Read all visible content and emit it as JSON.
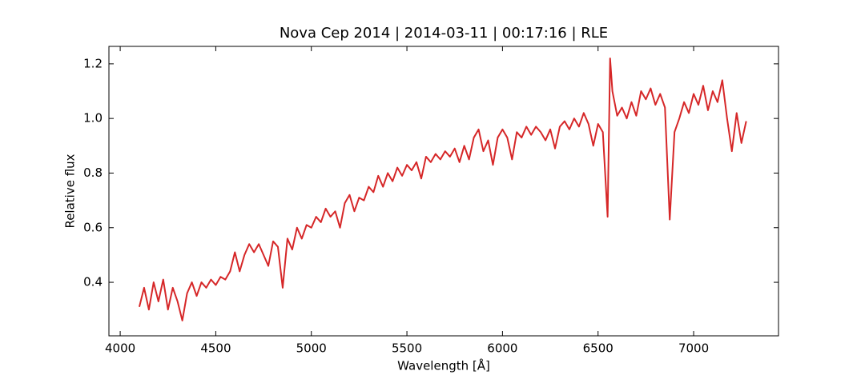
{
  "chart_data": {
    "type": "line",
    "title": "Nova Cep 2014 | 2014-03-11 | 00:17:16 | RLE",
    "xlabel": "Wavelength [Å]",
    "ylabel": "Relative flux",
    "x": [
      4100,
      4125,
      4150,
      4175,
      4200,
      4225,
      4250,
      4275,
      4300,
      4325,
      4350,
      4375,
      4400,
      4425,
      4450,
      4475,
      4500,
      4525,
      4550,
      4575,
      4600,
      4625,
      4650,
      4675,
      4700,
      4725,
      4750,
      4775,
      4800,
      4825,
      4850,
      4875,
      4900,
      4925,
      4950,
      4975,
      5000,
      5025,
      5050,
      5075,
      5100,
      5125,
      5150,
      5175,
      5200,
      5225,
      5250,
      5275,
      5300,
      5325,
      5350,
      5375,
      5400,
      5425,
      5450,
      5475,
      5500,
      5525,
      5550,
      5575,
      5600,
      5625,
      5650,
      5675,
      5700,
      5725,
      5750,
      5775,
      5800,
      5825,
      5850,
      5875,
      5900,
      5925,
      5950,
      5975,
      6000,
      6025,
      6050,
      6075,
      6100,
      6125,
      6150,
      6175,
      6200,
      6225,
      6250,
      6275,
      6300,
      6325,
      6350,
      6375,
      6400,
      6425,
      6450,
      6475,
      6500,
      6525,
      6550,
      6563,
      6575,
      6600,
      6625,
      6650,
      6675,
      6700,
      6725,
      6750,
      6775,
      6800,
      6825,
      6850,
      6875,
      6900,
      6925,
      6950,
      6975,
      7000,
      7025,
      7050,
      7075,
      7100,
      7125,
      7150,
      7175,
      7200,
      7225,
      7250,
      7275
    ],
    "series": [
      {
        "name": "Relative flux",
        "color": "#d62728",
        "values": [
          0.31,
          0.38,
          0.3,
          0.4,
          0.33,
          0.41,
          0.3,
          0.38,
          0.33,
          0.26,
          0.36,
          0.4,
          0.35,
          0.4,
          0.38,
          0.41,
          0.39,
          0.42,
          0.41,
          0.44,
          0.51,
          0.44,
          0.5,
          0.54,
          0.51,
          0.54,
          0.5,
          0.46,
          0.55,
          0.53,
          0.38,
          0.56,
          0.52,
          0.6,
          0.56,
          0.61,
          0.6,
          0.64,
          0.62,
          0.67,
          0.64,
          0.66,
          0.6,
          0.69,
          0.72,
          0.66,
          0.71,
          0.7,
          0.75,
          0.73,
          0.79,
          0.75,
          0.8,
          0.77,
          0.82,
          0.79,
          0.83,
          0.81,
          0.84,
          0.78,
          0.86,
          0.84,
          0.87,
          0.85,
          0.88,
          0.86,
          0.89,
          0.84,
          0.9,
          0.85,
          0.93,
          0.96,
          0.88,
          0.92,
          0.83,
          0.93,
          0.96,
          0.93,
          0.85,
          0.95,
          0.93,
          0.97,
          0.94,
          0.97,
          0.95,
          0.92,
          0.96,
          0.89,
          0.97,
          0.99,
          0.96,
          1.0,
          0.97,
          1.02,
          0.98,
          0.9,
          0.98,
          0.95,
          0.64,
          1.22,
          1.1,
          1.01,
          1.04,
          1.0,
          1.06,
          1.01,
          1.1,
          1.07,
          1.11,
          1.05,
          1.09,
          1.04,
          0.63,
          0.95,
          1.0,
          1.06,
          1.02,
          1.09,
          1.05,
          1.12,
          1.03,
          1.1,
          1.06,
          1.14,
          1.0,
          0.88,
          1.02,
          0.91,
          0.99
        ]
      }
    ],
    "xlim": [
      3941,
      7444
    ],
    "ylim": [
      0.204,
      1.264
    ],
    "xticks": [
      4000,
      4500,
      5000,
      5500,
      6000,
      6500,
      7000
    ],
    "yticks": [
      0.4,
      0.6,
      0.8,
      {
        "value": 1,
        "label": "1.0"
      },
      1.2
    ],
    "grid": false
  }
}
